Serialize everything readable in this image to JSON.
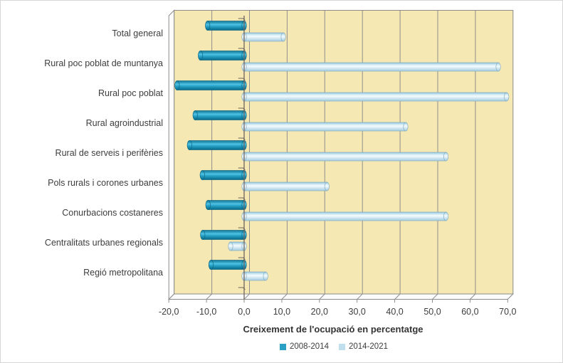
{
  "chart_data": {
    "type": "bar",
    "orientation": "horizontal",
    "style": "3d-cylinder",
    "title": "",
    "xlabel": "Creixement de l'ocupació en percentatge",
    "ylabel": "",
    "categories": [
      "Total general",
      "Rural poc poblat de muntanya",
      "Rural poc poblat",
      "Rural agroindustrial",
      "Rural de serveis i perifèries",
      "Pols rurals i corones urbanes",
      "Conurbacions costaneres",
      "Centralitats urbanes regionals",
      "Regió metropolitana"
    ],
    "series": [
      {
        "name": "2008-2014",
        "color": "#2aa0c4",
        "values": [
          -9.7,
          -11.6,
          -17.8,
          -13.0,
          -14.5,
          -11.1,
          -9.6,
          -11.0,
          -8.8
        ]
      },
      {
        "name": "2014-2021",
        "color": "#bfdfee",
        "values": [
          10.4,
          67.5,
          69.7,
          42.9,
          53.6,
          22.0,
          53.6,
          -3.6,
          5.7
        ]
      }
    ],
    "xlim": [
      -20,
      70
    ],
    "xticks": [
      -20,
      -10,
      0,
      10,
      20,
      30,
      40,
      50,
      60,
      70
    ],
    "xtick_labels": [
      "-20,0",
      "-10,0",
      "0,0",
      "10,0",
      "20,0",
      "30,0",
      "40,0",
      "50,0",
      "60,0",
      "70,0"
    ],
    "grid": true,
    "legend_position": "bottom",
    "colors": {
      "wall_background": "#f6e8b2",
      "gridline": "#8f8f8f",
      "axis_line": "#6f6460",
      "frame": "#8b8b8b",
      "side_wall": "#fcfcfc",
      "text": "#3d3d3d"
    }
  }
}
